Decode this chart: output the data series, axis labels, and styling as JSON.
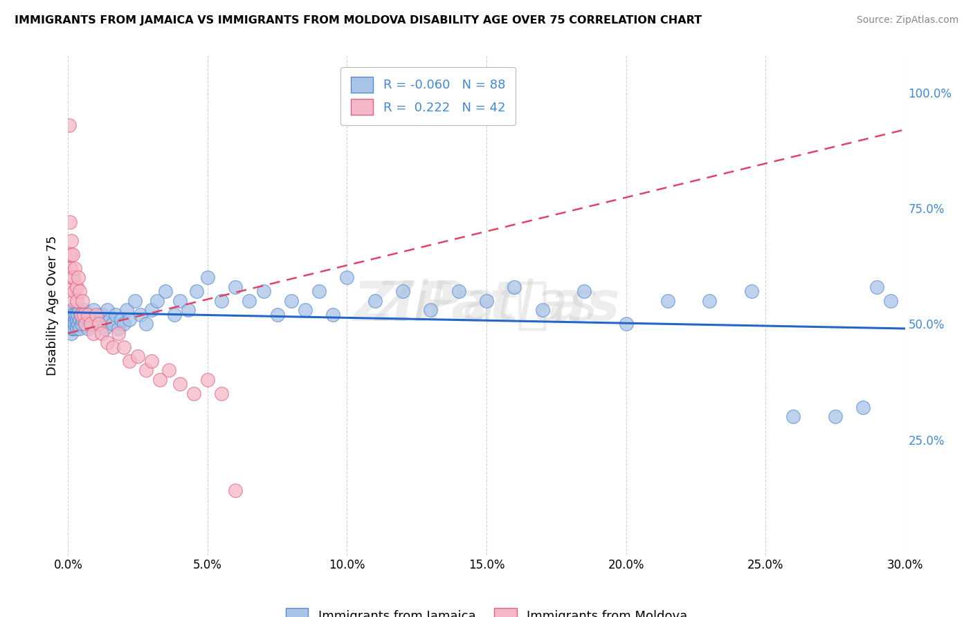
{
  "title": "IMMIGRANTS FROM JAMAICA VS IMMIGRANTS FROM MOLDOVA DISABILITY AGE OVER 75 CORRELATION CHART",
  "source": "Source: ZipAtlas.com",
  "ylabel": "Disability Age Over 75",
  "xlim": [
    0.0,
    0.3
  ],
  "ylim": [
    0.0,
    1.08
  ],
  "xtick_vals": [
    0.0,
    0.05,
    0.1,
    0.15,
    0.2,
    0.25,
    0.3
  ],
  "xtick_labels": [
    "0.0%",
    "5.0%",
    "10.0%",
    "15.0%",
    "20.0%",
    "25.0%",
    "30.0%"
  ],
  "ytick_vals": [
    0.25,
    0.5,
    0.75,
    1.0
  ],
  "ytick_labels": [
    "25.0%",
    "50.0%",
    "75.0%",
    "100.0%"
  ],
  "jamaica_color": "#aac4e8",
  "moldova_color": "#f5b8c8",
  "jamaica_edge_color": "#5588cc",
  "moldova_edge_color": "#e06080",
  "jamaica_line_color": "#2266cc",
  "moldova_line_color": "#dd4466",
  "legend_R_jamaica": "-0.060",
  "legend_N_jamaica": "88",
  "legend_R_moldova": "0.222",
  "legend_N_moldova": "42",
  "background_color": "#ffffff",
  "jamaica_x": [
    0.0003,
    0.0005,
    0.0007,
    0.0009,
    0.001,
    0.001,
    0.0012,
    0.0013,
    0.0014,
    0.0015,
    0.0016,
    0.0017,
    0.0018,
    0.002,
    0.002,
    0.0022,
    0.0023,
    0.0025,
    0.0027,
    0.003,
    0.003,
    0.0032,
    0.0034,
    0.0036,
    0.0038,
    0.004,
    0.0042,
    0.0045,
    0.0048,
    0.005,
    0.0055,
    0.006,
    0.0065,
    0.007,
    0.0075,
    0.008,
    0.009,
    0.01,
    0.011,
    0.012,
    0.013,
    0.014,
    0.015,
    0.016,
    0.017,
    0.018,
    0.019,
    0.02,
    0.021,
    0.022,
    0.024,
    0.026,
    0.028,
    0.03,
    0.032,
    0.035,
    0.038,
    0.04,
    0.043,
    0.046,
    0.05,
    0.055,
    0.06,
    0.065,
    0.07,
    0.075,
    0.08,
    0.09,
    0.1,
    0.11,
    0.12,
    0.13,
    0.14,
    0.15,
    0.16,
    0.17,
    0.185,
    0.2,
    0.215,
    0.23,
    0.245,
    0.26,
    0.275,
    0.285,
    0.29,
    0.295,
    0.085,
    0.095
  ],
  "jamaica_y": [
    0.5,
    0.52,
    0.49,
    0.51,
    0.5,
    0.53,
    0.48,
    0.52,
    0.51,
    0.5,
    0.49,
    0.53,
    0.51,
    0.5,
    0.52,
    0.49,
    0.51,
    0.5,
    0.52,
    0.5,
    0.51,
    0.49,
    0.52,
    0.5,
    0.53,
    0.51,
    0.49,
    0.52,
    0.5,
    0.51,
    0.53,
    0.5,
    0.52,
    0.49,
    0.51,
    0.5,
    0.53,
    0.51,
    0.5,
    0.52,
    0.49,
    0.53,
    0.51,
    0.5,
    0.52,
    0.49,
    0.51,
    0.5,
    0.53,
    0.51,
    0.55,
    0.52,
    0.5,
    0.53,
    0.55,
    0.57,
    0.52,
    0.55,
    0.53,
    0.57,
    0.6,
    0.55,
    0.58,
    0.55,
    0.57,
    0.52,
    0.55,
    0.57,
    0.6,
    0.55,
    0.57,
    0.53,
    0.57,
    0.55,
    0.58,
    0.53,
    0.57,
    0.5,
    0.55,
    0.55,
    0.57,
    0.3,
    0.3,
    0.32,
    0.58,
    0.55,
    0.53,
    0.52
  ],
  "moldova_x": [
    0.0003,
    0.0005,
    0.0007,
    0.0009,
    0.001,
    0.0012,
    0.0013,
    0.0015,
    0.0017,
    0.002,
    0.002,
    0.0022,
    0.0025,
    0.003,
    0.0032,
    0.0035,
    0.004,
    0.0045,
    0.005,
    0.0055,
    0.006,
    0.007,
    0.008,
    0.009,
    0.01,
    0.011,
    0.012,
    0.014,
    0.016,
    0.018,
    0.02,
    0.022,
    0.025,
    0.028,
    0.03,
    0.033,
    0.036,
    0.04,
    0.045,
    0.05,
    0.055,
    0.06
  ],
  "moldova_y": [
    0.93,
    0.62,
    0.72,
    0.65,
    0.62,
    0.68,
    0.58,
    0.6,
    0.65,
    0.55,
    0.6,
    0.57,
    0.62,
    0.58,
    0.55,
    0.6,
    0.57,
    0.52,
    0.55,
    0.52,
    0.5,
    0.52,
    0.5,
    0.48,
    0.52,
    0.5,
    0.48,
    0.46,
    0.45,
    0.48,
    0.45,
    0.42,
    0.43,
    0.4,
    0.42,
    0.38,
    0.4,
    0.37,
    0.35,
    0.38,
    0.35,
    0.14
  ],
  "moldova_trend_x0": 0.0,
  "moldova_trend_x1": 0.3,
  "moldova_trend_y0": 0.48,
  "moldova_trend_y1": 0.92,
  "jamaica_trend_x0": 0.0,
  "jamaica_trend_x1": 0.3,
  "jamaica_trend_y0": 0.525,
  "jamaica_trend_y1": 0.49
}
